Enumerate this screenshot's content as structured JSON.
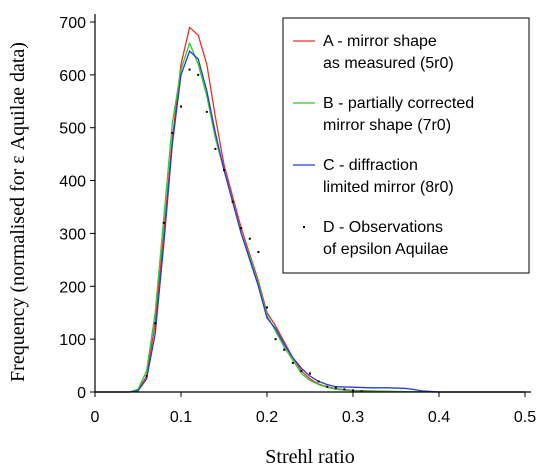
{
  "chart_data": {
    "type": "line",
    "xlabel": "Strehl ratio",
    "ylabel": "Frequency (normalised for ε Aquilae data)",
    "xlim": [
      0,
      0.5
    ],
    "ylim": [
      0,
      700
    ],
    "x_ticks": [
      "0",
      "0.1",
      "0.2",
      "0.3",
      "0.4",
      "0.5"
    ],
    "y_ticks": [
      "0",
      "100",
      "200",
      "300",
      "400",
      "500",
      "600",
      "700"
    ],
    "grid": false,
    "legend_position": "top-right",
    "series": [
      {
        "name": "A - mirror shape as measured (5r0)",
        "style": "line",
        "color": "#e8302a",
        "points": [
          [
            0,
            0
          ],
          [
            0.04,
            0
          ],
          [
            0.05,
            3
          ],
          [
            0.06,
            30
          ],
          [
            0.07,
            130
          ],
          [
            0.08,
            300
          ],
          [
            0.09,
            480
          ],
          [
            0.1,
            620
          ],
          [
            0.11,
            690
          ],
          [
            0.12,
            675
          ],
          [
            0.13,
            620
          ],
          [
            0.14,
            520
          ],
          [
            0.15,
            430
          ],
          [
            0.16,
            370
          ],
          [
            0.17,
            310
          ],
          [
            0.18,
            260
          ],
          [
            0.19,
            210
          ],
          [
            0.2,
            150
          ],
          [
            0.21,
            125
          ],
          [
            0.22,
            95
          ],
          [
            0.23,
            65
          ],
          [
            0.24,
            40
          ],
          [
            0.25,
            25
          ],
          [
            0.26,
            15
          ],
          [
            0.27,
            10
          ],
          [
            0.28,
            6
          ],
          [
            0.3,
            3
          ],
          [
            0.35,
            1
          ],
          [
            0.4,
            0
          ],
          [
            0.5,
            0
          ]
        ]
      },
      {
        "name": "B - partially corrected mirror shape (7r0)",
        "style": "line",
        "color": "#2dcc2a",
        "points": [
          [
            0,
            0
          ],
          [
            0.04,
            0
          ],
          [
            0.05,
            5
          ],
          [
            0.06,
            40
          ],
          [
            0.07,
            150
          ],
          [
            0.08,
            330
          ],
          [
            0.09,
            510
          ],
          [
            0.1,
            610
          ],
          [
            0.11,
            660
          ],
          [
            0.12,
            620
          ],
          [
            0.13,
            560
          ],
          [
            0.14,
            480
          ],
          [
            0.15,
            420
          ],
          [
            0.16,
            360
          ],
          [
            0.17,
            300
          ],
          [
            0.18,
            255
          ],
          [
            0.19,
            205
          ],
          [
            0.2,
            145
          ],
          [
            0.21,
            115
          ],
          [
            0.22,
            85
          ],
          [
            0.23,
            60
          ],
          [
            0.24,
            35
          ],
          [
            0.25,
            22
          ],
          [
            0.26,
            14
          ],
          [
            0.27,
            9
          ],
          [
            0.28,
            5
          ],
          [
            0.3,
            2
          ],
          [
            0.35,
            1
          ],
          [
            0.4,
            0
          ],
          [
            0.5,
            0
          ]
        ]
      },
      {
        "name": "C - diffraction limited mirror (8r0)",
        "style": "line",
        "color": "#2a3ad8",
        "points": [
          [
            0,
            0
          ],
          [
            0.04,
            0
          ],
          [
            0.05,
            2
          ],
          [
            0.06,
            25
          ],
          [
            0.07,
            110
          ],
          [
            0.08,
            280
          ],
          [
            0.09,
            470
          ],
          [
            0.1,
            600
          ],
          [
            0.11,
            645
          ],
          [
            0.12,
            630
          ],
          [
            0.13,
            570
          ],
          [
            0.14,
            490
          ],
          [
            0.15,
            420
          ],
          [
            0.16,
            360
          ],
          [
            0.17,
            300
          ],
          [
            0.18,
            250
          ],
          [
            0.19,
            200
          ],
          [
            0.2,
            140
          ],
          [
            0.21,
            120
          ],
          [
            0.22,
            90
          ],
          [
            0.23,
            65
          ],
          [
            0.24,
            45
          ],
          [
            0.25,
            30
          ],
          [
            0.26,
            20
          ],
          [
            0.27,
            14
          ],
          [
            0.28,
            10
          ],
          [
            0.3,
            9
          ],
          [
            0.32,
            8
          ],
          [
            0.34,
            8
          ],
          [
            0.36,
            7
          ],
          [
            0.37,
            5
          ],
          [
            0.38,
            2
          ],
          [
            0.4,
            0
          ],
          [
            0.5,
            0
          ]
        ]
      },
      {
        "name": "D - Observations of epsilon Aquilae",
        "style": "points",
        "color": "#000000",
        "points": [
          [
            0.06,
            30
          ],
          [
            0.07,
            130
          ],
          [
            0.08,
            320
          ],
          [
            0.09,
            490
          ],
          [
            0.1,
            540
          ],
          [
            0.11,
            610
          ],
          [
            0.12,
            600
          ],
          [
            0.13,
            530
          ],
          [
            0.14,
            460
          ],
          [
            0.15,
            420
          ],
          [
            0.16,
            360
          ],
          [
            0.17,
            310
          ],
          [
            0.18,
            290
          ],
          [
            0.19,
            265
          ],
          [
            0.2,
            160
          ],
          [
            0.21,
            100
          ],
          [
            0.22,
            80
          ],
          [
            0.23,
            55
          ],
          [
            0.24,
            40
          ],
          [
            0.25,
            35
          ],
          [
            0.26,
            20
          ],
          [
            0.27,
            10
          ],
          [
            0.28,
            8
          ],
          [
            0.29,
            5
          ],
          [
            0.3,
            3
          ],
          [
            0.31,
            1
          ]
        ]
      }
    ]
  }
}
